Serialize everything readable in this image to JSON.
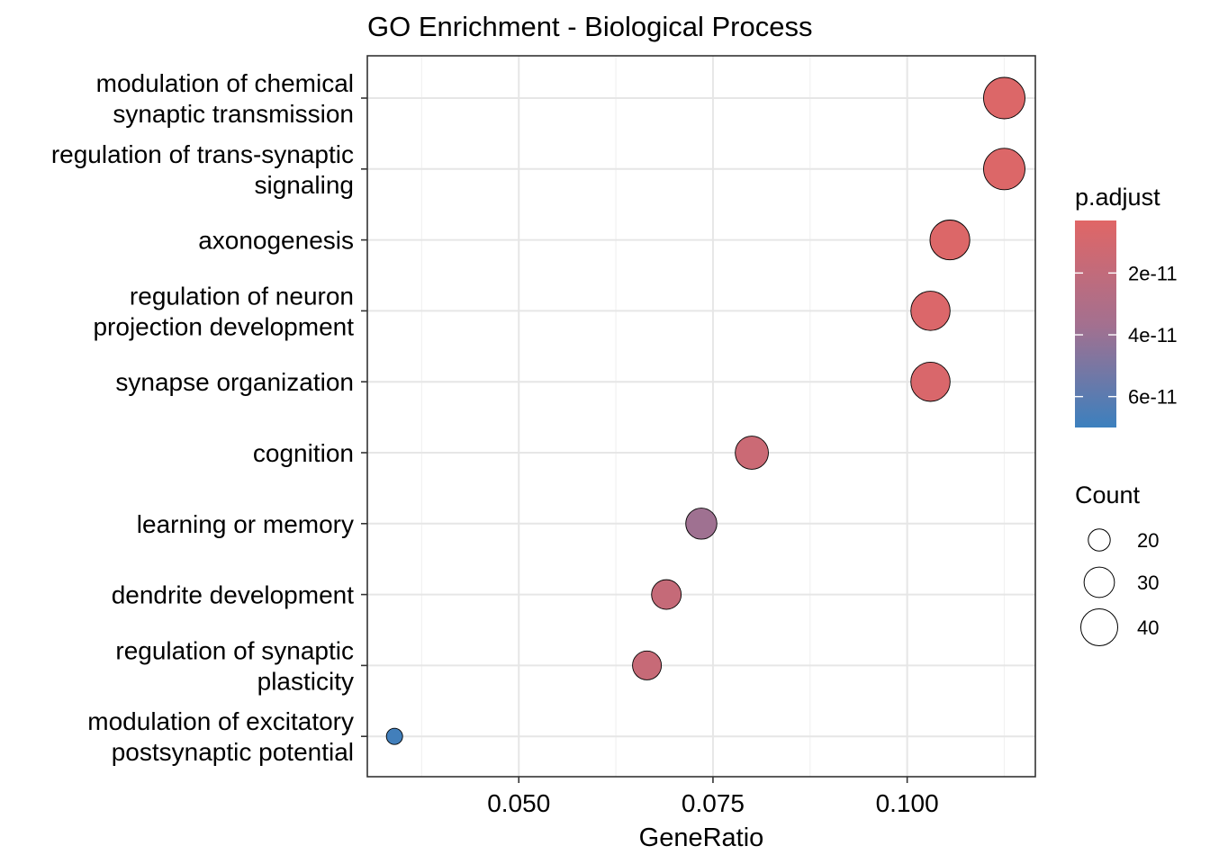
{
  "chart_data": {
    "type": "scatter",
    "title": "GO Enrichment - Biological Process",
    "xlabel": "GeneRatio",
    "ylabel": "",
    "xlim": [
      0.0305,
      0.1165
    ],
    "xticks": [
      0.05,
      0.075,
      0.1
    ],
    "xtick_labels": [
      "0.050",
      "0.075",
      "0.100"
    ],
    "grid": true,
    "legend_placement": "right",
    "categories": [
      "modulation of chemical synaptic transmission",
      "regulation of trans-synaptic signaling",
      "axonogenesis",
      "regulation of neuron projection development",
      "synapse organization",
      "cognition",
      "learning or memory",
      "dendrite development",
      "regulation of synaptic plasticity",
      "modulation of excitatory postsynaptic potential"
    ],
    "category_label_lines": [
      [
        "modulation of chemical",
        "synaptic transmission"
      ],
      [
        "regulation of trans-synaptic",
        "signaling"
      ],
      [
        "axonogenesis"
      ],
      [
        "regulation of neuron",
        "projection development"
      ],
      [
        "synapse organization"
      ],
      [
        "cognition"
      ],
      [
        "learning or memory"
      ],
      [
        "dendrite development"
      ],
      [
        "regulation of synaptic",
        "plasticity"
      ],
      [
        "modulation of excitatory",
        "postsynaptic potential"
      ]
    ],
    "points": [
      {
        "term": "modulation of chemical synaptic transmission",
        "gene_ratio": 0.1125,
        "count": 48,
        "p_adjust": 5e-12
      },
      {
        "term": "regulation of trans-synaptic signaling",
        "gene_ratio": 0.1125,
        "count": 48,
        "p_adjust": 5e-12
      },
      {
        "term": "axonogenesis",
        "gene_ratio": 0.1055,
        "count": 45,
        "p_adjust": 5e-12
      },
      {
        "term": "regulation of neuron projection development",
        "gene_ratio": 0.103,
        "count": 44,
        "p_adjust": 6e-12
      },
      {
        "term": "synapse organization",
        "gene_ratio": 0.103,
        "count": 44,
        "p_adjust": 7e-12
      },
      {
        "term": "cognition",
        "gene_ratio": 0.08,
        "count": 34,
        "p_adjust": 1.5e-11
      },
      {
        "term": "learning or memory",
        "gene_ratio": 0.0735,
        "count": 31,
        "p_adjust": 3.8e-11
      },
      {
        "term": "dendrite development",
        "gene_ratio": 0.069,
        "count": 29,
        "p_adjust": 1.8e-11
      },
      {
        "term": "regulation of synaptic plasticity",
        "gene_ratio": 0.0665,
        "count": 28,
        "p_adjust": 1.7e-11
      },
      {
        "term": "modulation of excitatory postsynaptic potential",
        "gene_ratio": 0.034,
        "count": 15,
        "p_adjust": 6.8e-11
      }
    ],
    "color_legend": {
      "title": "p.adjust",
      "low_color": "#E06666",
      "high_color": "#3C80BE",
      "range": [
        3e-12,
        7e-11
      ],
      "ticks": [
        2e-11,
        4e-11,
        6e-11
      ],
      "tick_labels": [
        "2e-11",
        "4e-11",
        "6e-11"
      ]
    },
    "size_legend": {
      "title": "Count",
      "values": [
        20,
        30,
        40
      ],
      "labels": [
        "20",
        "30",
        "40"
      ]
    }
  }
}
